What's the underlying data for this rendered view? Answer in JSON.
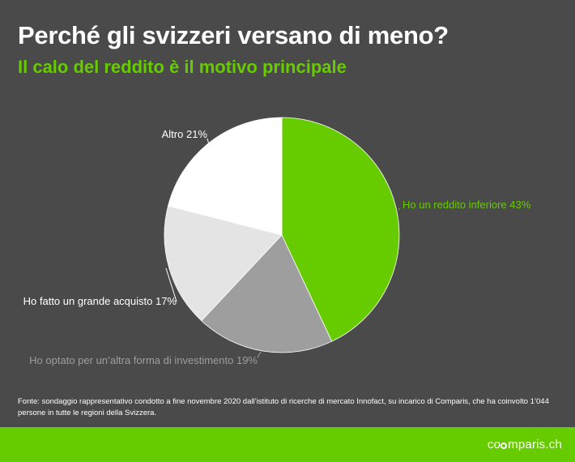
{
  "chart_data": {
    "type": "pie",
    "title": "Perché gli svizzeri versano di meno?",
    "subtitle": "Il calo del reddito è il motivo principale",
    "slices": [
      {
        "label": "Ho un reddito inferiore 43%",
        "value": 43,
        "color": "#66cc00",
        "label_color": "#66cc00"
      },
      {
        "label": "Ho optato per un’altra forma di investimento 19%",
        "value": 19,
        "color": "#9e9e9e",
        "label_color": "#9e9e9e"
      },
      {
        "label": "Ho fatto un grande acquisto 17%",
        "value": 17,
        "color": "#e4e4e4",
        "label_color": "#ffffff"
      },
      {
        "label": "Altro 21%",
        "value": 21,
        "color": "#ffffff",
        "label_color": "#ffffff"
      }
    ]
  },
  "footnote": "Fonte: sondaggio rappresentativo condotto a fine novembre 2020 dall’istituto di ricerche di mercato Innofact, su incarico di Comparis, che ha coinvolto 1’044 persone in tutte le regioni della Svizzera.",
  "brand": {
    "logo_text": "mparis.ch",
    "bar_color": "#66cc00"
  }
}
